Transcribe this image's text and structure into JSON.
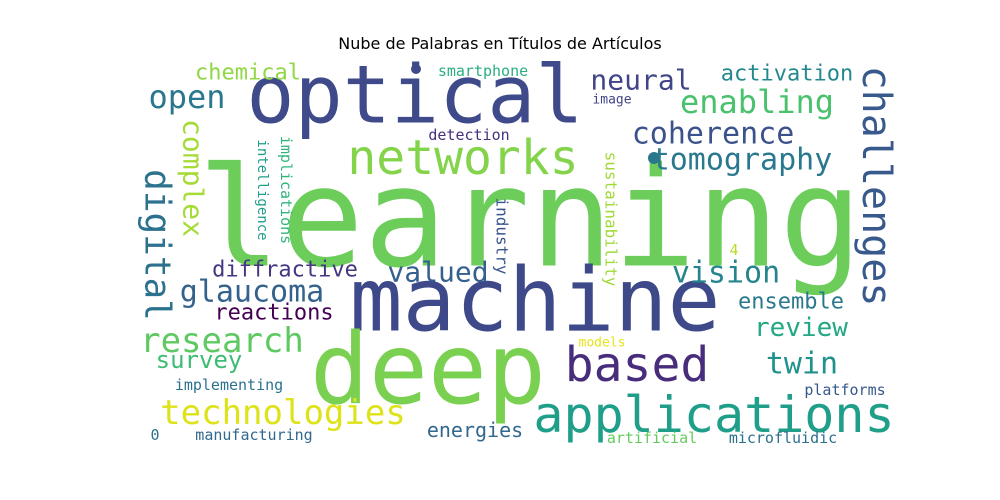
{
  "chart_data": {
    "type": "wordcloud",
    "title": "Nube de Palabras en Títulos de Artículos",
    "words": [
      {
        "text": "learning",
        "color": "#6ccd5a"
      },
      {
        "text": "machine",
        "color": "#3e4989"
      },
      {
        "text": "optical",
        "color": "#3e4a89"
      },
      {
        "text": "deep",
        "color": "#7ad151"
      },
      {
        "text": "applications",
        "color": "#1f9e89"
      },
      {
        "text": "networks",
        "color": "#84d44b"
      },
      {
        "text": "based",
        "color": "#472d7b"
      },
      {
        "text": "challenges",
        "color": "#38598c"
      },
      {
        "text": "digital",
        "color": "#2c728e"
      },
      {
        "text": "technologies",
        "color": "#dde318"
      },
      {
        "text": "research",
        "color": "#5ec962"
      },
      {
        "text": "coherence",
        "color": "#3b528b"
      },
      {
        "text": "tomography",
        "color": "#2a788e"
      },
      {
        "text": "enabling",
        "color": "#4ac16d"
      },
      {
        "text": "glaucoma",
        "color": "#33638d"
      },
      {
        "text": "vision",
        "color": "#25858e"
      },
      {
        "text": "complex",
        "color": "#a5db36"
      },
      {
        "text": "twin",
        "color": "#20928c"
      },
      {
        "text": "valued",
        "color": "#355f8d"
      },
      {
        "text": "neural",
        "color": "#414487"
      },
      {
        "text": "open",
        "color": "#2a788e"
      },
      {
        "text": "review",
        "color": "#22a884"
      },
      {
        "text": "survey",
        "color": "#3dbc74"
      },
      {
        "text": "ensemble",
        "color": "#2a788e"
      },
      {
        "text": "diffractive",
        "color": "#453781"
      },
      {
        "text": "reactions",
        "color": "#440154"
      },
      {
        "text": "activation",
        "color": "#23898e"
      },
      {
        "text": "chemical",
        "color": "#90d743"
      },
      {
        "text": "energies",
        "color": "#31688e"
      },
      {
        "text": "industry",
        "color": "#39568c"
      },
      {
        "text": "sustainability",
        "color": "#9fda3a"
      },
      {
        "text": "implications",
        "color": "#2fb47c"
      },
      {
        "text": "intelligence",
        "color": "#1f9e89"
      },
      {
        "text": "manufacturing",
        "color": "#31688e"
      },
      {
        "text": "smartphone",
        "color": "#29af7f"
      },
      {
        "text": "detection",
        "color": "#46327e"
      },
      {
        "text": "implementing",
        "color": "#2c728e"
      },
      {
        "text": "platforms",
        "color": "#38588c"
      },
      {
        "text": "microfluidic",
        "color": "#2d708e"
      },
      {
        "text": "artificial",
        "color": "#65cb5e"
      },
      {
        "text": "image",
        "color": "#414487"
      },
      {
        "text": "models",
        "color": "#e7e419"
      },
      {
        "text": "4",
        "color": "#b5de2b"
      },
      {
        "text": "0",
        "color": "#2d708e"
      }
    ]
  }
}
